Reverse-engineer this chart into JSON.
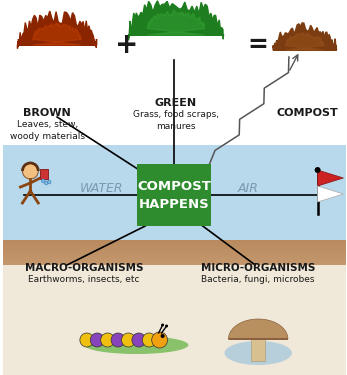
{
  "green_box_color": "#2e8b2e",
  "green_box_text_color": "#ffffff",
  "label_brown_title": "BROWN",
  "label_brown_sub": "Leaves, stew,\nwoody materials",
  "label_green_title": "GREEN",
  "label_green_sub": "Grass, food scraps,\nmanures",
  "label_compost": "COMPOST",
  "label_water": "WATER",
  "label_air": "AIR",
  "label_macro_title": "MACRO-ORGANISMS",
  "label_macro_sub": "Earthworms, insects, etc",
  "label_micro_title": "MICRO-ORGANISMS",
  "label_micro_sub": "Bacteria, fungi, microbes",
  "sky_blue": "#b8d8ec",
  "ground_brown": "#c4956a",
  "bottom_cream": "#f0e8d8",
  "white_top": "#ffffff",
  "text_dark": "#1a1a1a",
  "water_text_color": "#7a9ab0",
  "air_text_color": "#7a9ab0"
}
